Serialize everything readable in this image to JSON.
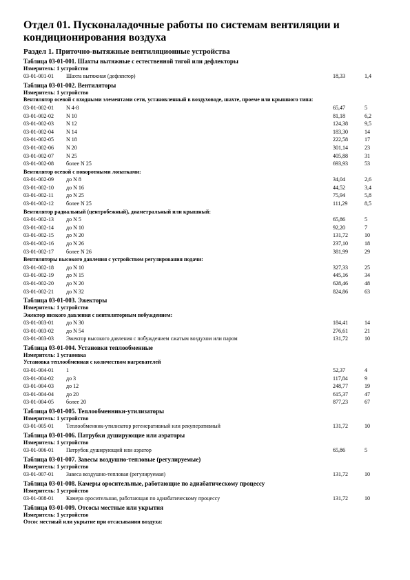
{
  "title": "Отдел 01. Пусконаладочные работы по системам вентиляции и кондиционирования воздуха",
  "section": "Раздел 1. Приточно-вытяжные вентиляционные устройства",
  "measurer": "Измеритель: 1 устройство",
  "sections": [
    {
      "title": "Таблица 03-01-001. Шахты вытяжные с естественной тягой или дефлекторы",
      "meas": true,
      "groups": [
        {
          "rows": [
            {
              "code": "03-01-001-01",
              "name": "Шахта вытяжная (дефлектор)",
              "v1": "18,33",
              "v2": "1,4"
            }
          ]
        }
      ]
    },
    {
      "title": "Таблица 03-01-002. Вентиляторы",
      "meas": true,
      "groups": [
        {
          "sub": "Вентилятор осевой с входными элементами сети, установленный в воздуховоде, шахте, проеме или крышного типа:",
          "rows": [
            {
              "code": "03-01-002-01",
              "name": "N 4-8",
              "v1": "65,47",
              "v2": "5"
            },
            {
              "code": "03-01-002-02",
              "name": "N 10",
              "v1": "81,18",
              "v2": "6,2"
            },
            {
              "code": "03-01-002-03",
              "name": "N 12",
              "v1": "124,38",
              "v2": "9,5"
            },
            {
              "code": "03-01-002-04",
              "name": "N 14",
              "v1": "183,30",
              "v2": "14"
            },
            {
              "code": "03-01-002-05",
              "name": "N 18",
              "v1": "222,58",
              "v2": "17"
            },
            {
              "code": "03-01-002-06",
              "name": "N 20",
              "v1": "301,14",
              "v2": "23"
            },
            {
              "code": "03-01-002-07",
              "name": "N 25",
              "v1": "405,88",
              "v2": "31"
            },
            {
              "code": "03-01-002-08",
              "name": "более N 25",
              "v1": "693,93",
              "v2": "53"
            }
          ]
        },
        {
          "sub": "Вентилятор осевой с поворотными лопатками:",
          "rows": [
            {
              "code": "03-01-002-09",
              "name": "до N 8",
              "v1": "34,04",
              "v2": "2,6"
            },
            {
              "code": "03-01-002-10",
              "name": "до N 16",
              "v1": "44,52",
              "v2": "3,4"
            },
            {
              "code": "03-01-002-11",
              "name": "до N 25",
              "v1": "75,94",
              "v2": "5,8"
            },
            {
              "code": "03-01-002-12",
              "name": "более N 25",
              "v1": "111,29",
              "v2": "8,5"
            }
          ]
        },
        {
          "sub": "Вентилятор радиальный (центробежный), диаметральный или крышный:",
          "rows": [
            {
              "code": "03-01-002-13",
              "name": "до N 5",
              "v1": "65,86",
              "v2": "5"
            },
            {
              "code": "03-01-002-14",
              "name": "до N 10",
              "v1": "92,20",
              "v2": "7"
            },
            {
              "code": "03-01-002-15",
              "name": "до N 20",
              "v1": "131,72",
              "v2": "10"
            },
            {
              "code": "03-01-002-16",
              "name": "до N 26",
              "v1": "237,10",
              "v2": "18"
            },
            {
              "code": "03-01-002-17",
              "name": "более N 26",
              "v1": "381,99",
              "v2": "29"
            }
          ]
        },
        {
          "sub": "Вентиляторы высокого давления с устройством регулирования подачи:",
          "rows": [
            {
              "code": "03-01-002-18",
              "name": "до N 10",
              "v1": "327,33",
              "v2": "25"
            },
            {
              "code": "03-01-002-19",
              "name": "до N 15",
              "v1": "445,16",
              "v2": "34"
            },
            {
              "code": "03-01-002-20",
              "name": "до N 20",
              "v1": "628,46",
              "v2": "48"
            },
            {
              "code": "03-01-002-21",
              "name": "до N 32",
              "v1": "824,86",
              "v2": "63"
            }
          ]
        }
      ]
    },
    {
      "title": "Таблица 03-01-003. Эжекторы",
      "meas": true,
      "groups": [
        {
          "sub": "Эжектор низкого давления с вентиляторным побуждением:",
          "rows": [
            {
              "code": "03-01-003-01",
              "name": "до N 30",
              "v1": "184,41",
              "v2": "14"
            },
            {
              "code": "03-01-003-02",
              "name": "до N 54",
              "v1": "276,61",
              "v2": "21"
            },
            {
              "code": "03-01-003-03",
              "name": "Эжектор высокого давления с побуждением сжатым воздухом или паром",
              "v1": "131,72",
              "v2": "10"
            }
          ]
        }
      ]
    },
    {
      "title": "Таблица 03-01-004. Установки теплообменные",
      "meas": true,
      "meas_text": "Измеритель: 1 установка",
      "groups": [
        {
          "sub": "Установка теплообменная с количеством нагревателей",
          "rows": [
            {
              "code": "03-01-004-01",
              "name": "1",
              "v1": "52,37",
              "v2": "4"
            },
            {
              "code": "03-01-004-02",
              "name": "до 3",
              "v1": "117,84",
              "v2": "9"
            },
            {
              "code": "03-01-004-03",
              "name": "до 12",
              "v1": "248,77",
              "v2": "19"
            },
            {
              "code": "03-01-004-04",
              "name": "до 20",
              "v1": "615,37",
              "v2": "47"
            },
            {
              "code": "03-01-004-05",
              "name": "более 20",
              "v1": "877,23",
              "v2": "67"
            }
          ]
        }
      ]
    },
    {
      "title": "Таблица 03-01-005. Теплообменники-утилизаторы",
      "meas": true,
      "groups": [
        {
          "rows": [
            {
              "code": "03-01-005-01",
              "name": "Теплообменник-утилизатор регенеративный или рекуперативный",
              "v1": "131,72",
              "v2": "10"
            }
          ]
        }
      ]
    },
    {
      "title": "Таблица 03-01-006. Патрубки душирующие или аэраторы",
      "meas": true,
      "groups": [
        {
          "rows": [
            {
              "code": "03-01-006-01",
              "name": "Патрубок душирующий или аэратор",
              "v1": "65,86",
              "v2": "5"
            }
          ]
        }
      ]
    },
    {
      "title": "Таблица 03-01-007. Завесы воздушно-тепловые (регулируемые)",
      "meas": true,
      "groups": [
        {
          "rows": [
            {
              "code": "03-01-007-01",
              "name": "Завеса воздушно-тепловая (регулируемая)",
              "v1": "131,72",
              "v2": "10"
            }
          ]
        }
      ]
    },
    {
      "title": "Таблица 03-01-008. Камеры оросительные, работающие по адиабатическому процессу",
      "meas": true,
      "groups": [
        {
          "rows": [
            {
              "code": "03-01-008-01",
              "name": "Камера оросительная, работающая по адиабатическому процессу",
              "v1": "131,72",
              "v2": "10"
            }
          ]
        }
      ]
    },
    {
      "title": "Таблица 03-01-009. Отсосы местные или укрытия",
      "meas": true,
      "groups": [
        {
          "sub": "Отсос местный или укрытие при отсасывании воздуха:",
          "rows": []
        }
      ]
    }
  ]
}
